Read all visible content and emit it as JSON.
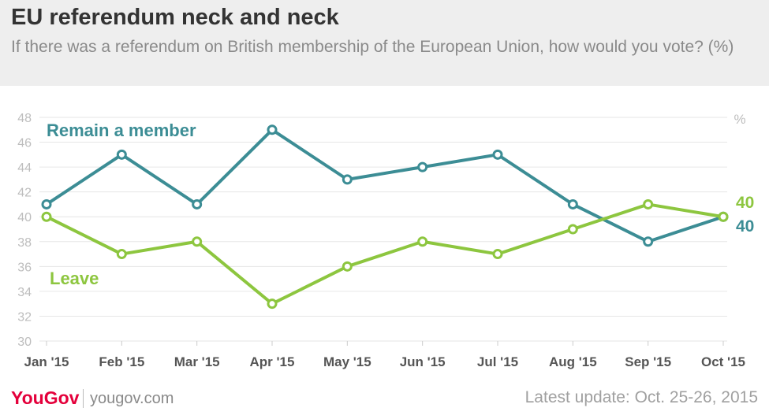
{
  "header": {
    "title": "EU referendum neck and neck",
    "subtitle": "If there was a referendum on British membership of the European Union, how would you vote? (%)"
  },
  "footer": {
    "brand_you": "You",
    "brand_gov": "Gov",
    "site": "yougov.com",
    "update": "Latest update: Oct. 25-26, 2015"
  },
  "chart_data": {
    "type": "line",
    "title": "EU referendum neck and neck",
    "subtitle": "If there was a referendum on British membership of the European Union, how would you vote? (%)",
    "unit_label": "%",
    "categories": [
      "Jan '15",
      "Feb '15",
      "Mar '15",
      "Apr '15",
      "May '15",
      "Jun '15",
      "Jul '15",
      "Aug '15",
      "Sep '15",
      "Oct '15"
    ],
    "ylim": [
      30,
      48
    ],
    "yticks": [
      30,
      32,
      34,
      36,
      38,
      40,
      42,
      44,
      46,
      48
    ],
    "grid": true,
    "series": [
      {
        "name": "Remain a member",
        "color": "#3c8d95",
        "values": [
          41,
          45,
          41,
          47,
          43,
          44,
          45,
          41,
          38,
          40
        ],
        "end_label": "40"
      },
      {
        "name": "Leave",
        "color": "#8dc63f",
        "values": [
          40,
          37,
          38,
          33,
          36,
          38,
          37,
          39,
          41,
          40
        ],
        "end_label": "40"
      }
    ]
  }
}
